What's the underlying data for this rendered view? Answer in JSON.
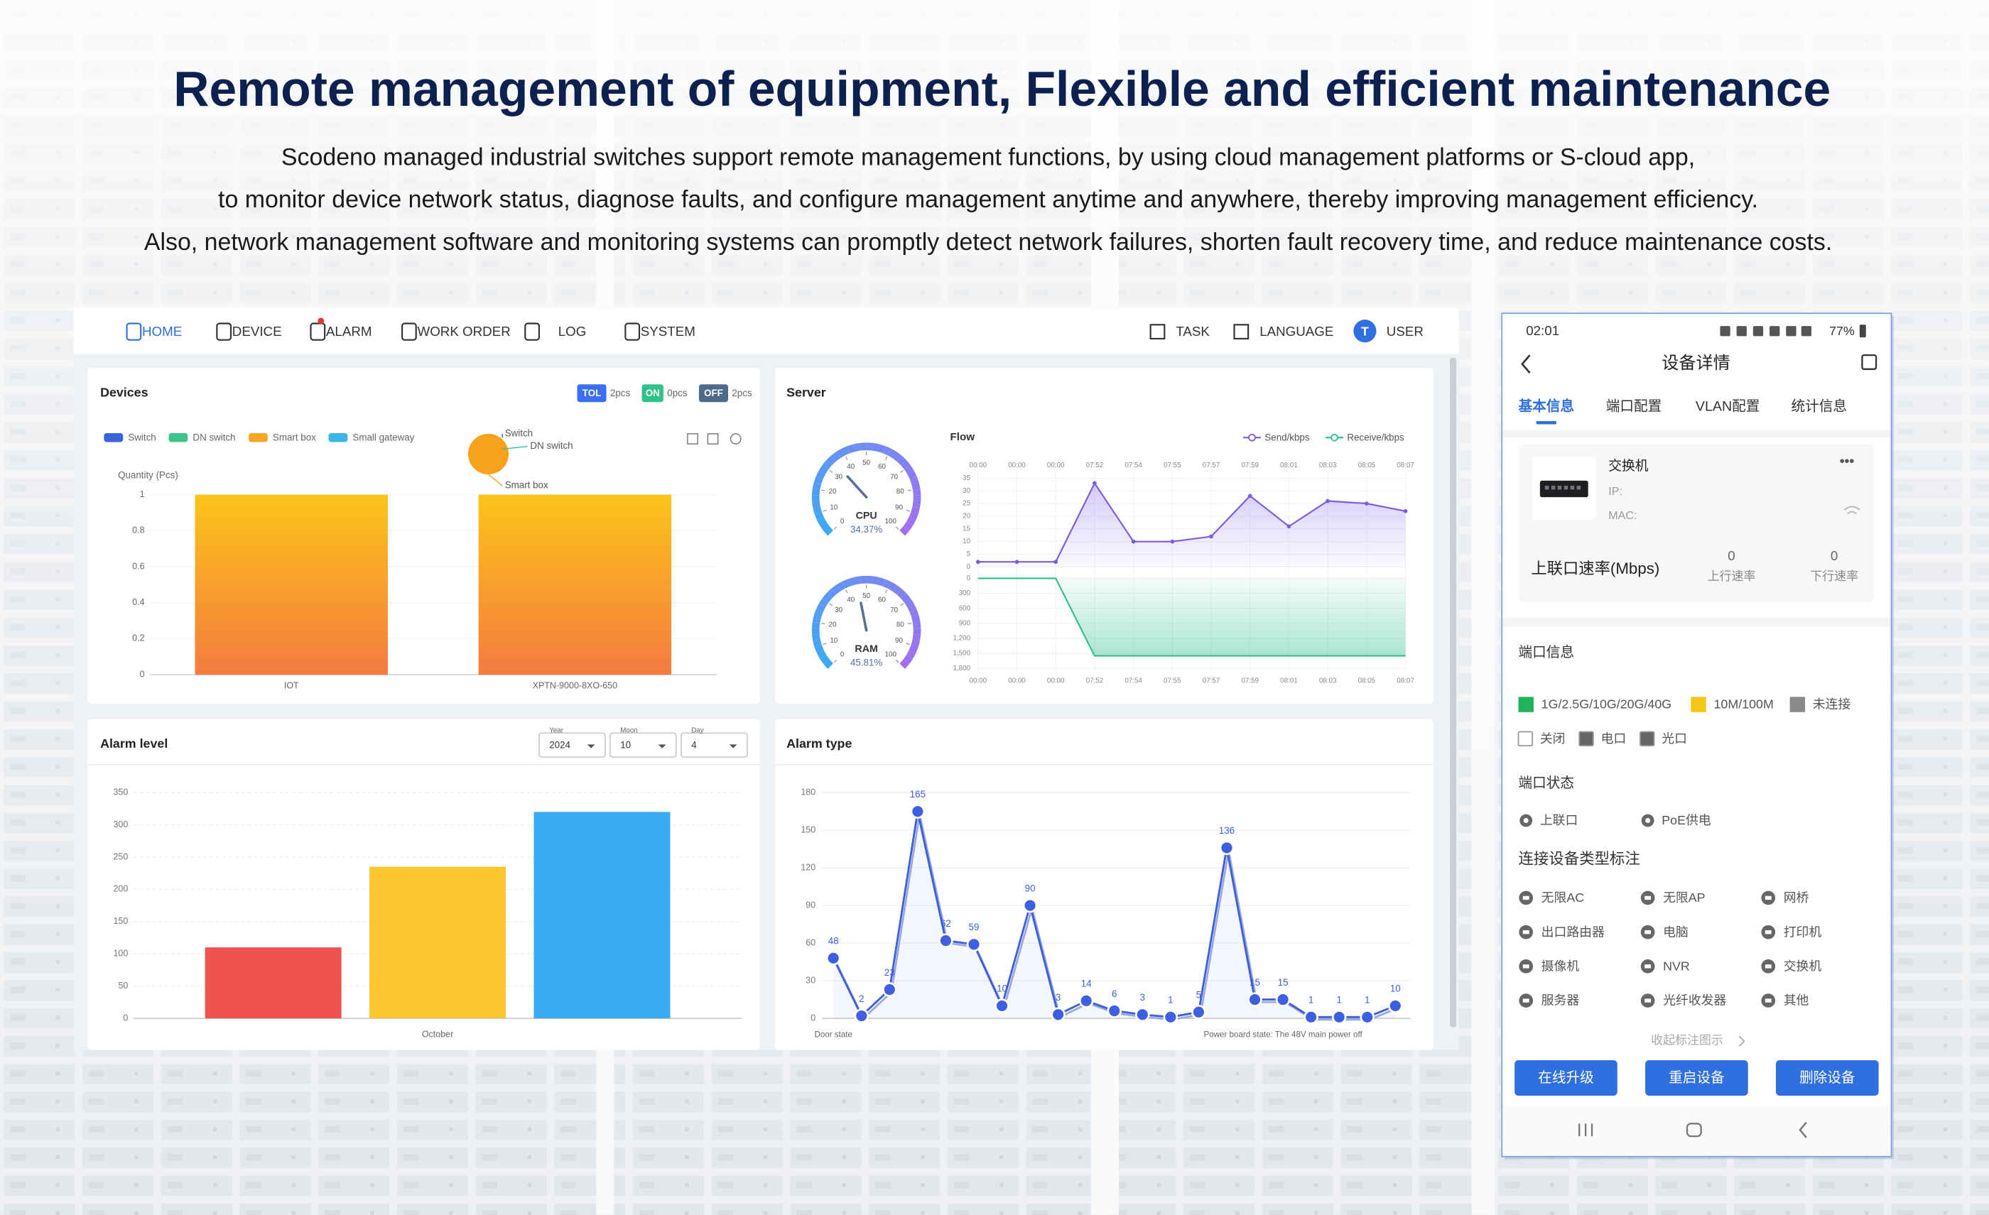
{
  "header": {
    "title": "Remote management of equipment, Flexible and efficient maintenance",
    "lines": [
      "Scodeno managed industrial switches support remote management functions, by using cloud management platforms or S-cloud app,",
      "to monitor device network status, diagnose faults, and configure management anytime and anywhere, thereby improving management efficiency.",
      "Also, network management software and monitoring systems can promptly detect network failures, shorten fault recovery time, and reduce maintenance costs."
    ]
  },
  "nav": {
    "left": [
      "HOME",
      "DEVICE",
      "ALARM",
      "WORK ORDER",
      "LOG",
      "SYSTEM"
    ],
    "right": [
      "TASK",
      "LANGUAGE",
      "USER"
    ],
    "avatar": "T"
  },
  "chart_data": [
    {
      "type": "bar",
      "title": "Devices",
      "badges": [
        {
          "tag": "TOL",
          "count": "2pcs",
          "color": "#3b6ef5"
        },
        {
          "tag": "ON",
          "count": "0pcs",
          "color": "#2fc28b"
        },
        {
          "tag": "OFF",
          "count": "2pcs",
          "color": "#4e6a8a"
        }
      ],
      "legend": [
        {
          "name": "Switch",
          "color": "#3a62d9"
        },
        {
          "name": "DN switch",
          "color": "#3cc48a"
        },
        {
          "name": "Smart box",
          "color": "#f5a623"
        },
        {
          "name": "Small gateway",
          "color": "#3ab5e6"
        }
      ],
      "pie_labels": [
        "Switch",
        "DN switch",
        "Smart box"
      ],
      "ylabel": "Quantity (Pcs)",
      "categories": [
        "IOT",
        "XPTN-9000-8XO-650"
      ],
      "values": [
        1,
        1
      ],
      "color": "#fcc419",
      "ylim": [
        0,
        1
      ],
      "yticks": [
        0,
        0.2,
        0.4,
        0.6,
        0.8,
        1
      ]
    },
    {
      "type": "gauge",
      "title": "Server",
      "ylim": [
        0,
        100
      ],
      "yticks": [
        0,
        10,
        20,
        30,
        40,
        50,
        60,
        70,
        80,
        90,
        100
      ],
      "series": [
        {
          "name": "CPU",
          "values": [
            34.37
          ],
          "value_labels": [
            "34.37%"
          ]
        },
        {
          "name": "RAM",
          "values": [
            45.81
          ],
          "value_labels": [
            "45.81%"
          ]
        }
      ]
    },
    {
      "type": "line",
      "title": "Flow",
      "categories": [
        "00:00",
        "00:00",
        "00:00",
        "07:52",
        "07:54",
        "07:55",
        "07:57",
        "07:59",
        "08:01",
        "08:03",
        "08:05",
        "08:07"
      ],
      "series": [
        {
          "name": "Send/kbps",
          "color": "#7b5ce0",
          "values": [
            2,
            2,
            2,
            33,
            10,
            10,
            12,
            28,
            16,
            26,
            25,
            22
          ]
        },
        {
          "name": "Receive/kbps",
          "color": "#2dbf8f",
          "axis": "y2",
          "values": [
            0,
            0,
            0,
            1550,
            1550,
            1550,
            1550,
            1550,
            1550,
            1550,
            1550,
            1550
          ]
        }
      ],
      "ylim": [
        0,
        35
      ],
      "yticks": [
        0,
        5,
        10,
        15,
        20,
        25,
        30,
        35
      ],
      "y2lim": [
        1800,
        0
      ],
      "y2ticks": [
        0,
        300,
        600,
        900,
        {
          "value": 1200,
          "label": "1,200"
        },
        {
          "value": 1500,
          "label": "1,500"
        },
        {
          "value": 1800,
          "label": "1,800"
        }
      ]
    },
    {
      "type": "bar",
      "title": "Alarm level",
      "filters": [
        {
          "label": "Year",
          "value": "2024"
        },
        {
          "label": "Moon",
          "value": "10"
        },
        {
          "label": "Day",
          "value": "4"
        }
      ],
      "categories": [
        "October"
      ],
      "series": [
        {
          "color": "#ef5350",
          "values": [
            110
          ]
        },
        {
          "color": "#fdc62e",
          "values": [
            235
          ]
        },
        {
          "color": "#3aaaf2",
          "values": [
            320
          ]
        }
      ],
      "ylim": [
        0,
        350
      ],
      "yticks": [
        0,
        50,
        100,
        150,
        200,
        250,
        300,
        350
      ],
      "grid": true
    },
    {
      "type": "line",
      "title": "Alarm type",
      "categories": [
        "Door state",
        null,
        null,
        null,
        null,
        null,
        null,
        null,
        null,
        null,
        null,
        null,
        null,
        null,
        null,
        null,
        "Power board state: The 48V main power off",
        null,
        null,
        null,
        null
      ],
      "values": [
        48,
        2,
        23,
        165,
        62,
        59,
        10,
        90,
        3,
        14,
        6,
        3,
        1,
        5,
        136,
        15,
        15,
        1,
        1,
        1,
        10
      ],
      "color": "#3d5fe0",
      "ylim": [
        0,
        180
      ],
      "yticks": [
        0,
        30,
        60,
        90,
        120,
        150,
        180
      ],
      "grid": true
    }
  ],
  "phone": {
    "time": "02:01",
    "battery": "77%",
    "title": "设备详情",
    "tabs": [
      "基本信息",
      "端口配置",
      "VLAN配置",
      "统计信息"
    ],
    "device": {
      "name": "交换机",
      "ip": "IP:",
      "mac": "MAC:",
      "menu": "•••"
    },
    "uplink": {
      "label": "上联口速率(Mbps)",
      "stats": [
        {
          "value": 0,
          "label": "上行速率"
        },
        {
          "value": 0,
          "label": "下行速率"
        }
      ]
    },
    "port_info": {
      "title": "端口信息",
      "legend": [
        {
          "label": "1G/2.5G/10G/20G/40G",
          "color": "#1fb35a"
        },
        {
          "label": "10M/100M",
          "color": "#f5c518"
        },
        {
          "label": "未连接",
          "color": "#8a8a8a"
        }
      ],
      "types": [
        "关闭",
        "电口",
        "光口"
      ]
    },
    "port_status": {
      "title": "端口状态",
      "items": [
        "上联口",
        "PoE供电"
      ]
    },
    "device_types": {
      "title": "连接设备类型标注",
      "items": [
        "无限AC",
        "无限AP",
        "网桥",
        "出口路由器",
        "电脑",
        "打印机",
        "摄像机",
        "NVR",
        "交换机",
        "服务器",
        "光纤收发器",
        "其他"
      ],
      "toggle": "收起标注图示"
    },
    "buttons": [
      "在线升级",
      "重启设备",
      "删除设备"
    ]
  }
}
